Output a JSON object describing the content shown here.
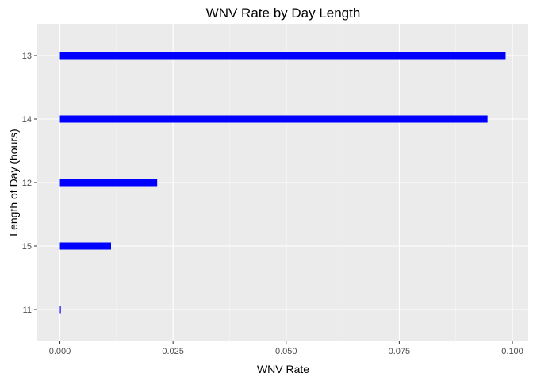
{
  "chart_data": {
    "type": "bar",
    "orientation": "horizontal",
    "title": "WNV Rate by Day Length",
    "xlabel": "WNV Rate",
    "ylabel": "Length of Day (hours)",
    "categories": [
      "13",
      "14",
      "12",
      "15",
      "11"
    ],
    "values": [
      0.0985,
      0.0945,
      0.0215,
      0.0113,
      0.0002
    ],
    "xlim": [
      -0.005,
      0.1035
    ],
    "xticks": [
      0.0,
      0.025,
      0.05,
      0.075,
      0.1
    ],
    "xtick_labels": [
      "0.000",
      "0.025",
      "0.050",
      "0.075",
      "0.100"
    ],
    "grid": true,
    "legend": "none",
    "colors": {
      "bar": "#0000ff",
      "panel": "#ebebeb",
      "grid_major": "#ffffff",
      "grid_minor": "#f5f5f5"
    }
  }
}
